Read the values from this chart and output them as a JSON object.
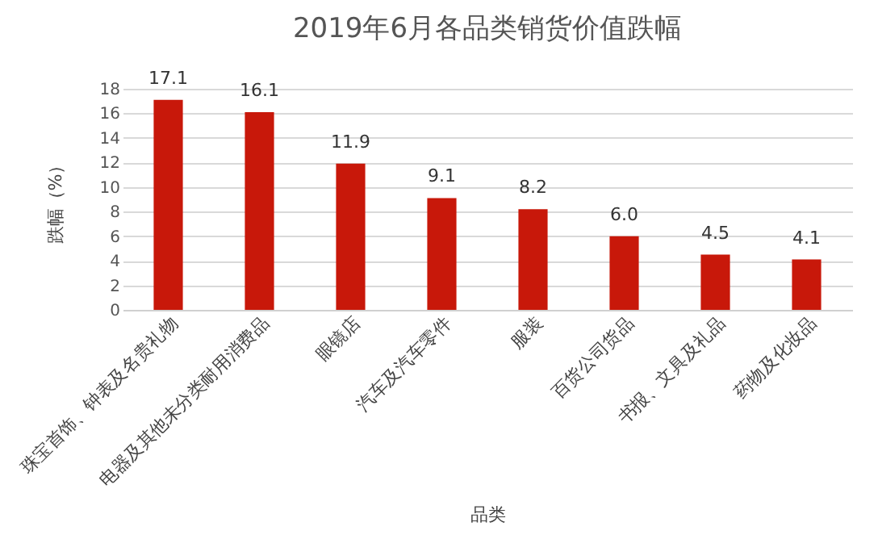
{
  "chart_data": {
    "type": "bar",
    "title": "2019年6月各品类销货价值跌幅",
    "xlabel": "品类",
    "ylabel": "跌幅（%）",
    "categories": [
      "珠宝首饰、钟表及名贵礼物",
      "电器及其他未分类耐用消费品",
      "眼镜店",
      "汽车及汽车零件",
      "服装",
      "百货公司货品",
      "书报、文具及礼品",
      "药物及化妆品"
    ],
    "values": [
      17.1,
      16.1,
      11.9,
      9.1,
      8.2,
      6.0,
      4.5,
      4.1
    ],
    "value_labels": [
      "17.1",
      "16.1",
      "11.9",
      "9.1",
      "8.2",
      "6.0",
      "4.5",
      "4.1"
    ],
    "color": "#c8180a",
    "ylim": [
      0,
      18
    ],
    "yticks": [
      0,
      2,
      4,
      6,
      8,
      10,
      12,
      14,
      16,
      18
    ],
    "grid": "y"
  }
}
